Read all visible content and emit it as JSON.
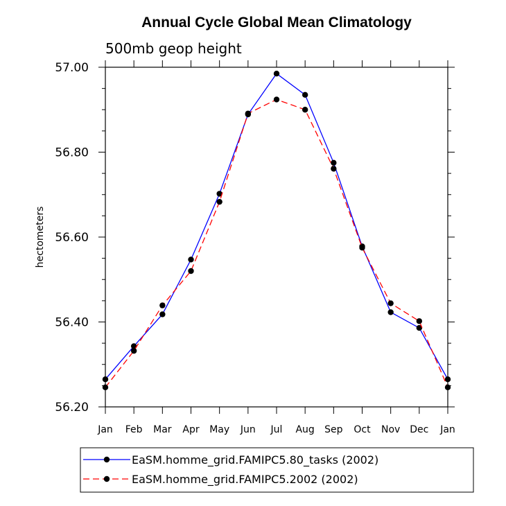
{
  "chart_data": {
    "type": "line",
    "title": "Annual Cycle Global Mean Climatology",
    "subtitle": "500mb geop height",
    "ylabel": "hectometers",
    "xlabel": "",
    "ylim": [
      56.2,
      57.0
    ],
    "y_ticks": [
      "56.20",
      "56.40",
      "56.60",
      "56.80",
      "57.00"
    ],
    "categories": [
      "Jan",
      "Feb",
      "Mar",
      "Apr",
      "May",
      "Jun",
      "Jul",
      "Aug",
      "Sep",
      "Oct",
      "Nov",
      "Dec",
      "Jan"
    ],
    "series": [
      {
        "name": "EaSM.homme_grid.FAMIPC5.80_tasks (2002)",
        "color": "#0000ff",
        "dash": "solid",
        "values": [
          56.265,
          56.343,
          56.418,
          56.547,
          56.702,
          56.889,
          56.985,
          56.935,
          56.775,
          56.578,
          56.423,
          56.386,
          56.265
        ]
      },
      {
        "name": "EaSM.homme_grid.FAMIPC5.2002 (2002)",
        "color": "#ff0000",
        "dash": "dashed",
        "values": [
          56.246,
          56.332,
          56.439,
          56.52,
          56.683,
          56.891,
          56.924,
          56.9,
          56.761,
          56.575,
          56.444,
          56.402,
          56.246
        ]
      }
    ],
    "grid": false,
    "legend": "bottom"
  }
}
